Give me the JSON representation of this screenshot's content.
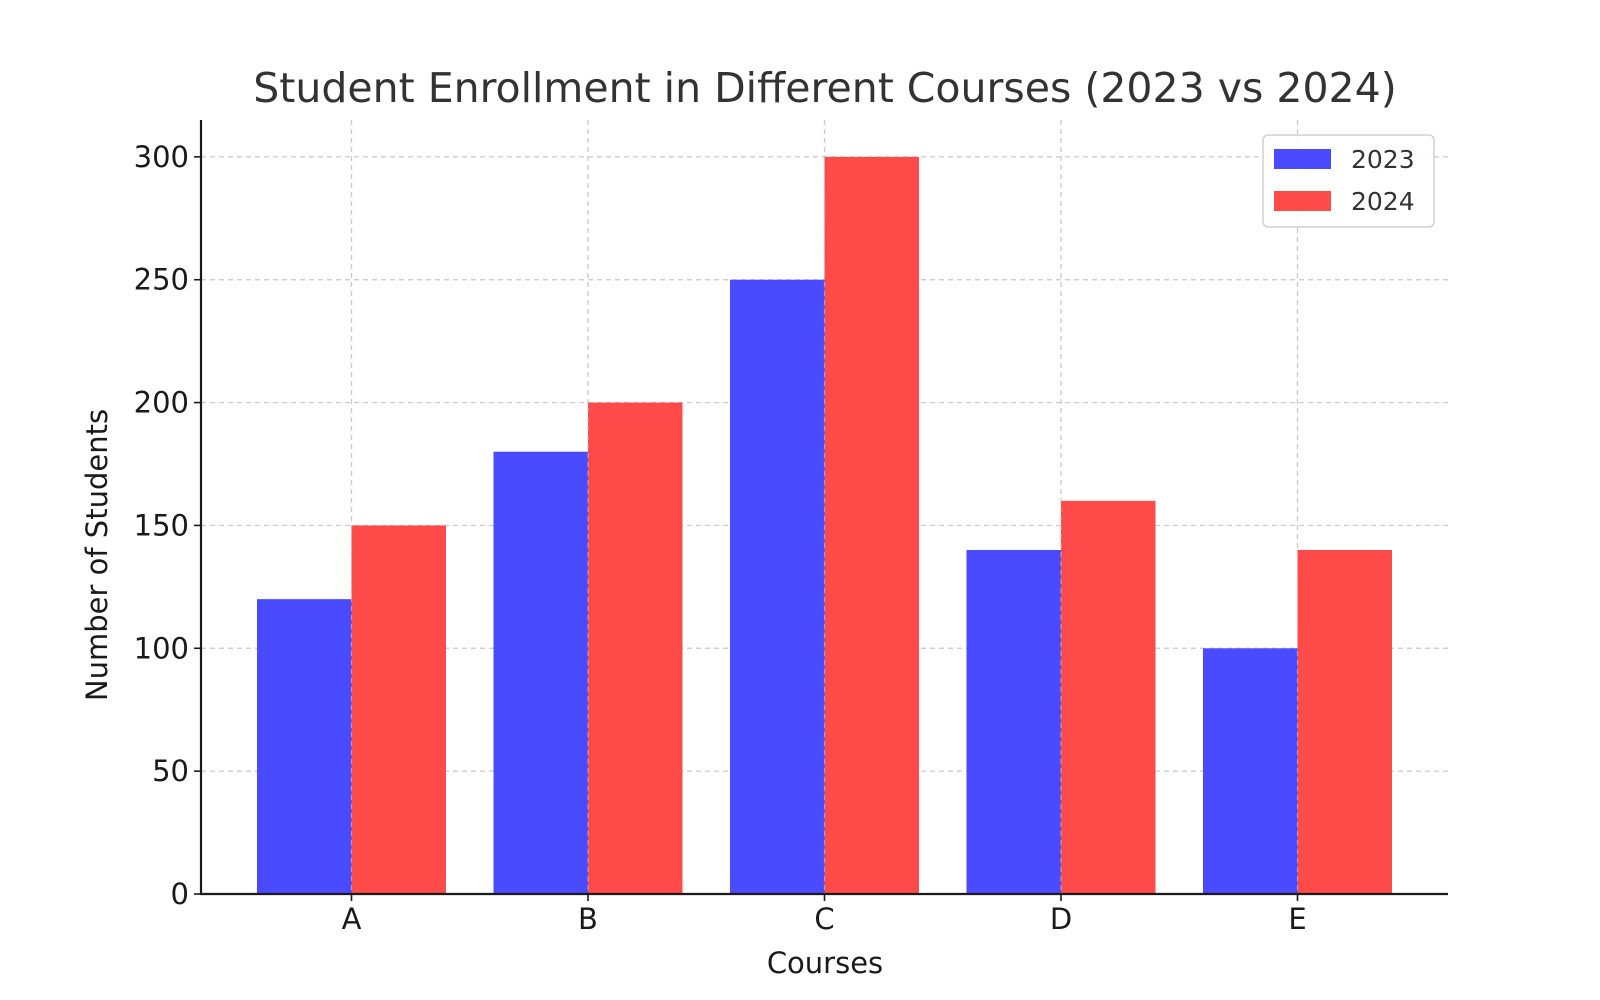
{
  "chart_data": {
    "type": "bar",
    "title": "Student Enrollment in Different Courses (2023 vs 2024)",
    "xlabel": "Courses",
    "ylabel": "Number of Students",
    "categories": [
      "A",
      "B",
      "C",
      "D",
      "E"
    ],
    "series": [
      {
        "name": "2023",
        "values": [
          120,
          180,
          250,
          140,
          100
        ],
        "color": "#4a4aff"
      },
      {
        "name": "2024",
        "values": [
          150,
          200,
          300,
          160,
          140
        ],
        "color": "#ff4a4a"
      }
    ],
    "ylim": [
      0,
      315
    ],
    "yticks": [
      0,
      50,
      100,
      150,
      200,
      250,
      300
    ],
    "grid": true,
    "legend_position": "top-right"
  }
}
